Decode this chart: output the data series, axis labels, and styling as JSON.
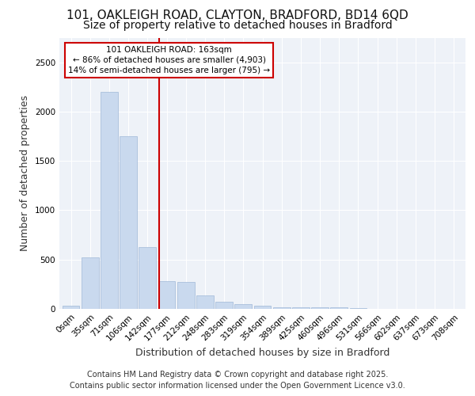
{
  "title_line1": "101, OAKLEIGH ROAD, CLAYTON, BRADFORD, BD14 6QD",
  "title_line2": "Size of property relative to detached houses in Bradford",
  "xlabel": "Distribution of detached houses by size in Bradford",
  "ylabel": "Number of detached properties",
  "bar_labels": [
    "0sqm",
    "35sqm",
    "71sqm",
    "106sqm",
    "142sqm",
    "177sqm",
    "212sqm",
    "248sqm",
    "283sqm",
    "319sqm",
    "354sqm",
    "389sqm",
    "425sqm",
    "460sqm",
    "496sqm",
    "531sqm",
    "566sqm",
    "602sqm",
    "637sqm",
    "673sqm",
    "708sqm"
  ],
  "bar_values": [
    30,
    520,
    2200,
    1750,
    630,
    280,
    275,
    140,
    70,
    45,
    30,
    20,
    20,
    20,
    18,
    5,
    3,
    2,
    1,
    1,
    1
  ],
  "bar_color": "#c9d9ee",
  "bar_edge_color": "#a0b8d8",
  "vline_color": "#cc0000",
  "annotation_text": "101 OAKLEIGH ROAD: 163sqm\n← 86% of detached houses are smaller (4,903)\n14% of semi-detached houses are larger (795) →",
  "annotation_box_color": "#cc0000",
  "ylim": [
    0,
    2750
  ],
  "yticks": [
    0,
    500,
    1000,
    1500,
    2000,
    2500
  ],
  "background_color": "#eef2f8",
  "grid_color": "#ffffff",
  "title_fontsize": 11,
  "subtitle_fontsize": 10,
  "axis_fontsize": 9,
  "tick_fontsize": 7.5,
  "footer_line1": "Contains HM Land Registry data © Crown copyright and database right 2025.",
  "footer_line2": "Contains public sector information licensed under the Open Government Licence v3.0."
}
